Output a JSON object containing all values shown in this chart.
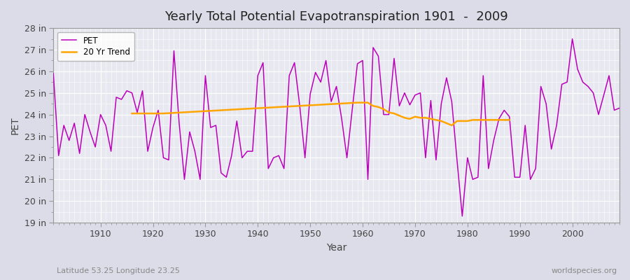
{
  "title": "Yearly Total Potential Evapotranspiration 1901  -  2009",
  "xlabel": "Year",
  "ylabel": "PET",
  "subtitle_left": "Latitude 53.25 Longitude 23.25",
  "subtitle_right": "worldspecies.org",
  "pet_color": "#bb00bb",
  "trend_color": "#FFA500",
  "bg_color": "#dcdce8",
  "plot_bg_color": "#e8e8f0",
  "grid_color": "#ffffff",
  "ylim": [
    19,
    28
  ],
  "ytick_labels": [
    "19 in",
    "20 in",
    "21 in",
    "22 in",
    "23 in",
    "24 in",
    "25 in",
    "26 in",
    "27 in",
    "28 in"
  ],
  "ytick_vals": [
    19,
    20,
    21,
    22,
    23,
    24,
    25,
    26,
    27,
    28
  ],
  "years": [
    1901,
    1902,
    1903,
    1904,
    1905,
    1906,
    1907,
    1908,
    1909,
    1910,
    1911,
    1912,
    1913,
    1914,
    1915,
    1916,
    1917,
    1918,
    1919,
    1920,
    1921,
    1922,
    1923,
    1924,
    1925,
    1926,
    1927,
    1928,
    1929,
    1930,
    1931,
    1932,
    1933,
    1934,
    1935,
    1936,
    1937,
    1938,
    1939,
    1940,
    1941,
    1942,
    1943,
    1944,
    1945,
    1946,
    1947,
    1948,
    1949,
    1950,
    1951,
    1952,
    1953,
    1954,
    1955,
    1956,
    1957,
    1958,
    1959,
    1960,
    1961,
    1962,
    1963,
    1964,
    1965,
    1966,
    1967,
    1968,
    1969,
    1970,
    1971,
    1972,
    1973,
    1974,
    1975,
    1976,
    1977,
    1978,
    1979,
    1980,
    1981,
    1982,
    1983,
    1984,
    1985,
    1986,
    1987,
    1988,
    1989,
    1990,
    1991,
    1992,
    1993,
    1994,
    1995,
    1996,
    1997,
    1998,
    1999,
    2000,
    2001,
    2002,
    2003,
    2004,
    2005,
    2006,
    2007,
    2008,
    2009
  ],
  "pet_values": [
    25.9,
    22.1,
    23.5,
    22.8,
    23.6,
    22.2,
    24.0,
    23.2,
    22.5,
    24.0,
    23.5,
    22.3,
    24.8,
    24.7,
    25.1,
    25.0,
    24.1,
    25.1,
    22.3,
    23.4,
    24.2,
    22.0,
    21.9,
    26.95,
    23.6,
    21.0,
    23.2,
    22.3,
    21.0,
    25.8,
    23.4,
    23.5,
    21.3,
    21.1,
    22.1,
    23.7,
    22.0,
    22.3,
    22.3,
    25.8,
    26.4,
    21.5,
    22.0,
    22.1,
    21.5,
    25.8,
    26.4,
    24.4,
    22.0,
    24.95,
    25.95,
    25.5,
    26.5,
    24.6,
    25.3,
    23.8,
    22.0,
    24.2,
    26.35,
    26.5,
    21.0,
    27.1,
    26.7,
    24.0,
    24.0,
    26.6,
    24.4,
    25.0,
    24.45,
    24.9,
    25.0,
    22.0,
    24.65,
    21.9,
    24.5,
    25.7,
    24.6,
    21.9,
    19.3,
    22.0,
    21.0,
    21.1,
    25.8,
    21.5,
    22.8,
    23.8,
    24.2,
    23.9,
    21.1,
    21.1,
    23.5,
    21.0,
    21.5,
    25.3,
    24.5,
    22.4,
    23.5,
    25.4,
    25.5,
    27.5,
    26.1,
    25.5,
    25.3,
    25.0,
    24.0,
    24.9,
    25.8,
    24.2,
    24.3
  ],
  "trend_years": [
    1916,
    1917,
    1918,
    1919,
    1920,
    1921,
    1922,
    1959,
    1960,
    1961,
    1962,
    1963,
    1964,
    1965,
    1966,
    1967,
    1968,
    1969,
    1970,
    1971,
    1972,
    1973,
    1974,
    1975,
    1976,
    1977,
    1978,
    1979,
    1980,
    1981,
    1982,
    1983,
    1984,
    1985,
    1986,
    1987,
    1988
  ],
  "trend_vals": [
    24.05,
    24.05,
    24.05,
    24.05,
    24.05,
    24.05,
    24.05,
    24.55,
    24.55,
    24.55,
    24.4,
    24.35,
    24.25,
    24.1,
    24.05,
    23.95,
    23.85,
    23.8,
    23.9,
    23.85,
    23.85,
    23.8,
    23.75,
    23.7,
    23.6,
    23.5,
    23.7,
    23.7,
    23.7,
    23.75,
    23.75,
    23.75,
    23.75,
    23.75,
    23.75,
    23.75,
    23.75
  ]
}
